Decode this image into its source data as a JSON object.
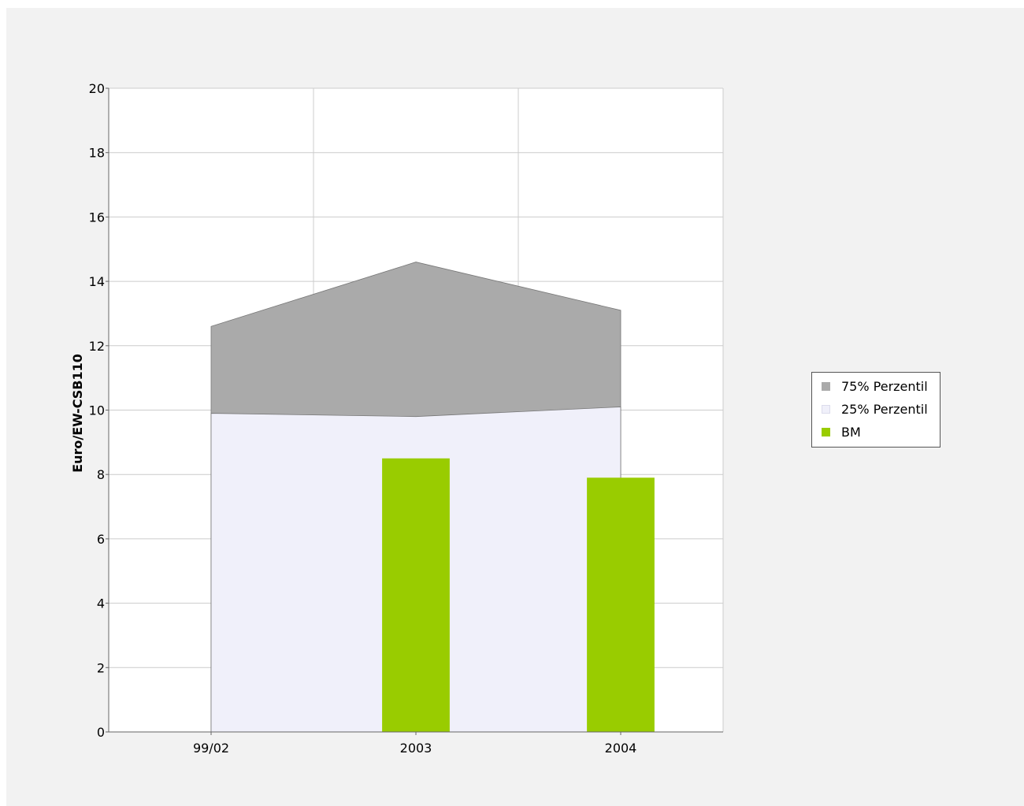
{
  "chart_data": {
    "type": "area",
    "categories": [
      "99/02",
      "2003",
      "2004"
    ],
    "ylabel": "Euro/EW-CSB110",
    "xlabel": "",
    "ylim": [
      0,
      20
    ],
    "yticks": [
      0,
      2,
      4,
      6,
      8,
      10,
      12,
      14,
      16,
      18,
      20
    ],
    "grid": true,
    "legend_position": "right",
    "series": [
      {
        "name": "75% Perzentil",
        "kind": "area",
        "color": "#aaaaaa",
        "values": [
          12.6,
          14.6,
          13.1
        ]
      },
      {
        "name": "25% Perzentil",
        "kind": "area",
        "color": "#f0f0fa",
        "values": [
          9.9,
          9.8,
          10.1
        ]
      },
      {
        "name": "BM",
        "kind": "bar",
        "color": "#99cc00",
        "values": [
          null,
          8.5,
          7.9
        ]
      }
    ]
  }
}
